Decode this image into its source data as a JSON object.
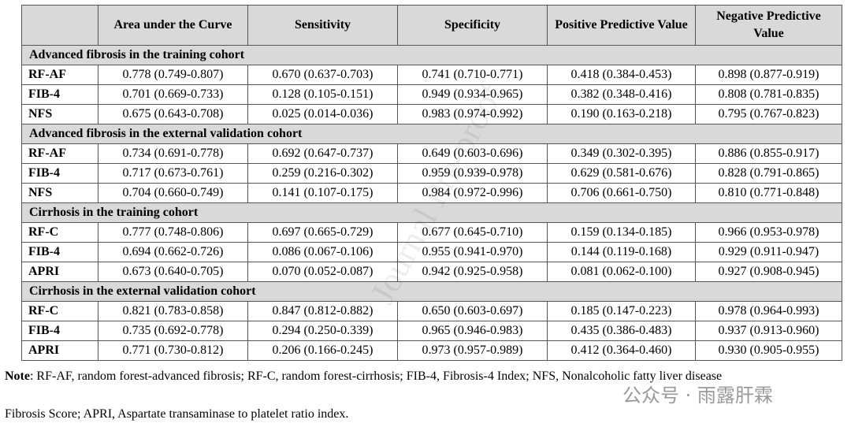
{
  "table": {
    "header": [
      "",
      "Area under the Curve",
      "Sensitivity",
      "Specificity",
      "Positive Predictive Value",
      "Negative Predictive Value"
    ],
    "sections": [
      {
        "title": "Advanced fibrosis in the training cohort",
        "rows": [
          [
            "RF-AF",
            "0.778 (0.749-0.807)",
            "0.670 (0.637-0.703)",
            "0.741 (0.710-0.771)",
            "0.418 (0.384-0.453)",
            "0.898 (0.877-0.919)"
          ],
          [
            "FIB-4",
            "0.701 (0.669-0.733)",
            "0.128 (0.105-0.151)",
            "0.949 (0.934-0.965)",
            "0.382 (0.348-0.416)",
            "0.808 (0.781-0.835)"
          ],
          [
            "NFS",
            "0.675 (0.643-0.708)",
            "0.025 (0.014-0.036)",
            "0.983 (0.974-0.992)",
            "0.190 (0.163-0.218)",
            "0.795 (0.767-0.823)"
          ]
        ]
      },
      {
        "title": "Advanced fibrosis in the external validation cohort",
        "rows": [
          [
            "RF-AF",
            "0.734 (0.691-0.778)",
            "0.692 (0.647-0.737)",
            "0.649 (0.603-0.696)",
            "0.349 (0.302-0.395)",
            "0.886 (0.855-0.917)"
          ],
          [
            "FIB-4",
            "0.717 (0.673-0.761)",
            "0.259 (0.216-0.302)",
            "0.959 (0.939-0.978)",
            "0.629 (0.581-0.676)",
            "0.828 (0.791-0.865)"
          ],
          [
            "NFS",
            "0.704 (0.660-0.749)",
            "0.141 (0.107-0.175)",
            "0.984 (0.972-0.996)",
            "0.706 (0.661-0.750)",
            "0.810 (0.771-0.848)"
          ]
        ]
      },
      {
        "title": "Cirrhosis in the training cohort",
        "rows": [
          [
            "RF-C",
            "0.777 (0.748-0.806)",
            "0.697 (0.665-0.729)",
            "0.677 (0.645-0.710)",
            "0.159 (0.134-0.185)",
            "0.966 (0.953-0.978)"
          ],
          [
            "FIB-4",
            "0.694 (0.662-0.726)",
            "0.086 (0.067-0.106)",
            "0.955 (0.941-0.970)",
            "0.144 (0.119-0.168)",
            "0.929 (0.911-0.947)"
          ],
          [
            "APRI",
            "0.673 (0.640-0.705)",
            "0.070 (0.052-0.087)",
            "0.942 (0.925-0.958)",
            "0.081 (0.062-0.100)",
            "0.927 (0.908-0.945)"
          ]
        ]
      },
      {
        "title": "Cirrhosis in the external validation cohort",
        "rows": [
          [
            "RF-C",
            "0.821 (0.783-0.858)",
            "0.847 (0.812-0.882)",
            "0.650 (0.603-0.697)",
            "0.185 (0.147-0.223)",
            "0.978 (0.964-0.993)"
          ],
          [
            "FIB-4",
            "0.735 (0.692-0.778)",
            "0.294 (0.250-0.339)",
            "0.965 (0.946-0.983)",
            "0.435 (0.386-0.483)",
            "0.937 (0.913-0.960)"
          ],
          [
            "APRI",
            "0.771 (0.730-0.812)",
            "0.206 (0.166-0.245)",
            "0.973 (0.957-0.989)",
            "0.412 (0.364-0.460)",
            "0.930 (0.905-0.955)"
          ]
        ]
      }
    ]
  },
  "note": {
    "label": "Note",
    "lines": [
      ": RF-AF, random forest-advanced fibrosis; RF-C, random forest-cirrhosis; FIB-4, Fibrosis-4 Index; NFS, Nonalcoholic fatty liver disease",
      "Fibrosis Score; APRI, Aspartate transaminase to platelet ratio index."
    ]
  },
  "watermark": "Journal Pre-proof",
  "wechat_mark": "公众号 · 雨露肝霖"
}
